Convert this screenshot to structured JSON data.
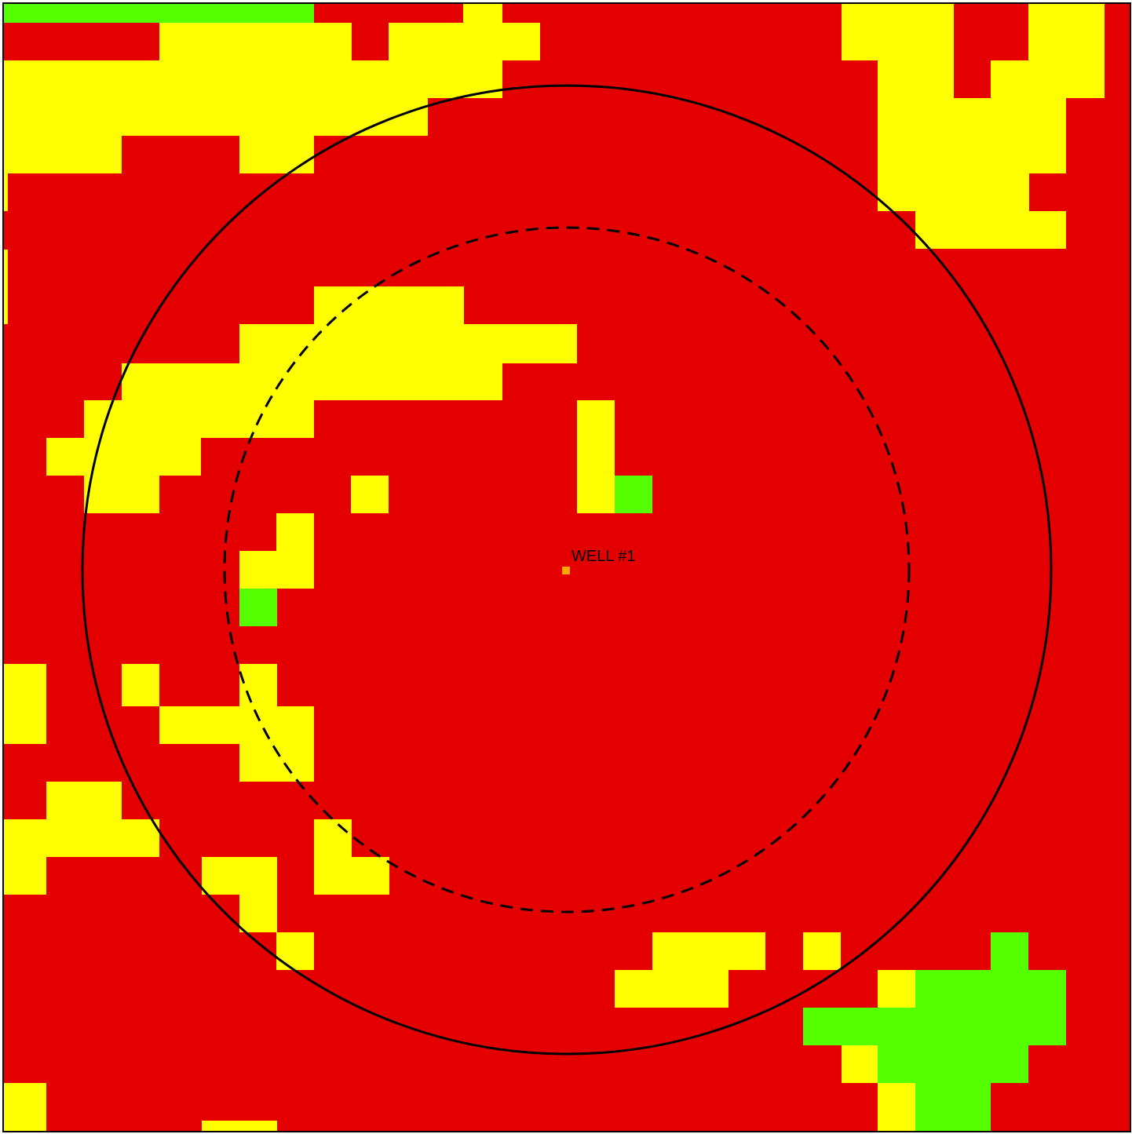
{
  "map": {
    "colors": {
      "red": "#e40000",
      "yellow": "#ffff00",
      "green": "#55ff00",
      "well_marker": "#ffa500",
      "outline": "#000000"
    },
    "well": {
      "label": "WELL #1"
    }
  }
}
